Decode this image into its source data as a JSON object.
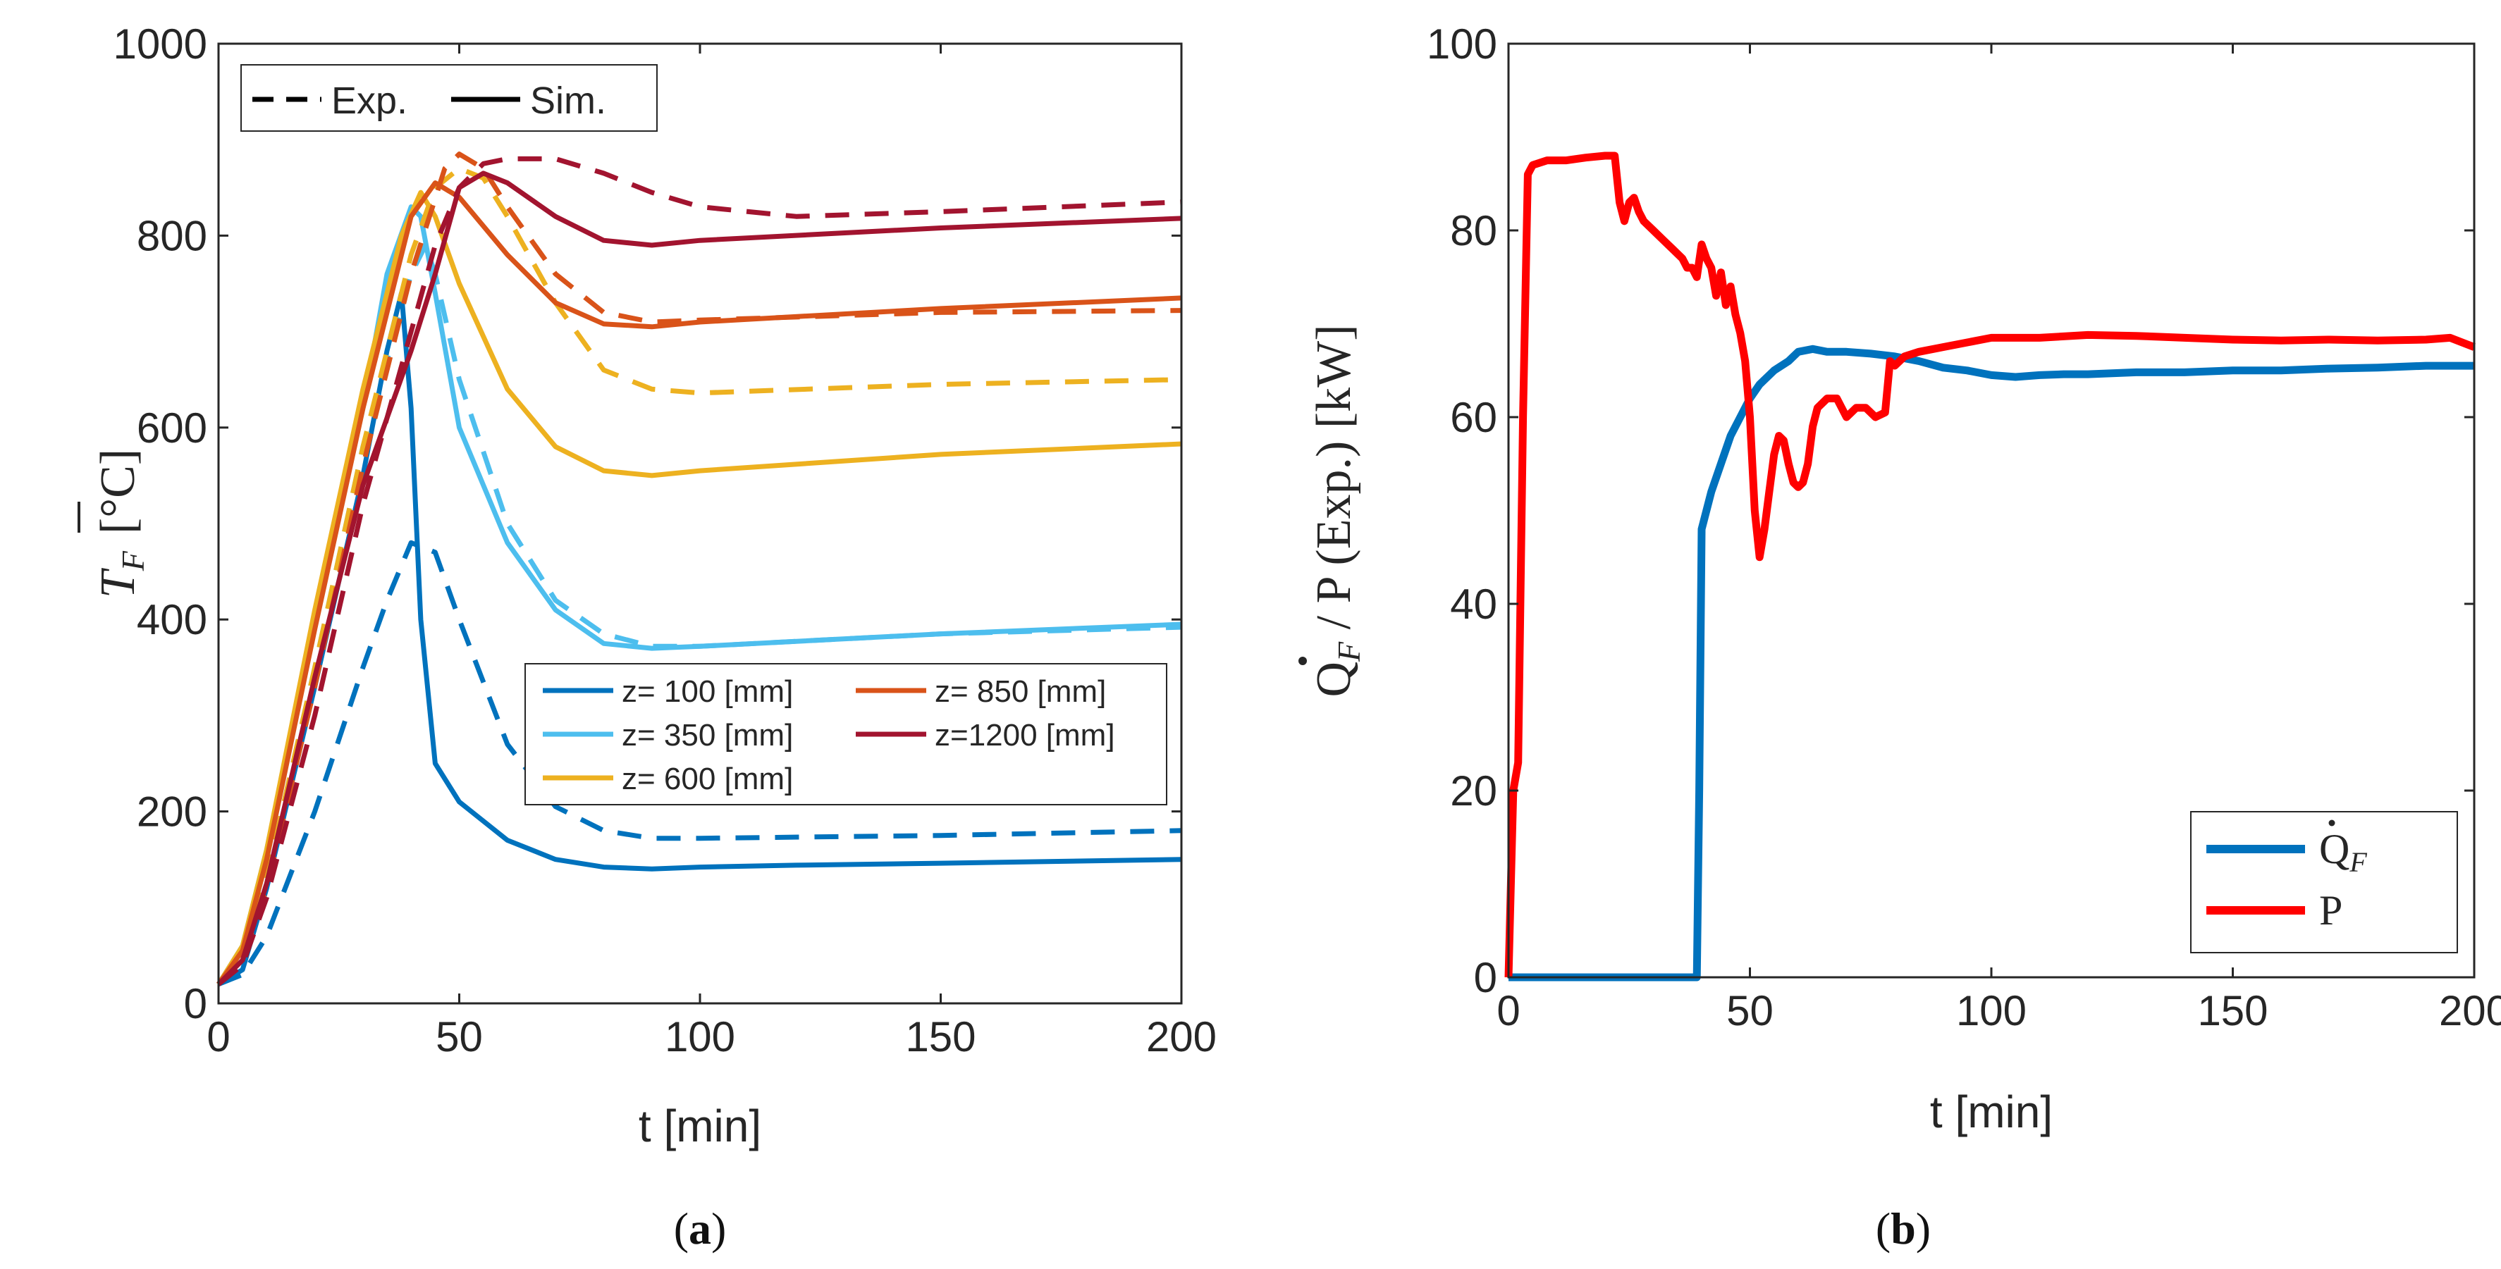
{
  "chart_data": [
    {
      "id": "a",
      "type": "line",
      "caption": {
        "open": "(",
        "letter": "a",
        "close": ")"
      },
      "ylabel": "T̄_F [°C]",
      "ylabel_parts": {
        "symbol": "T",
        "sub": "F",
        "unit": "[°C]"
      },
      "xlabel": "t [min]",
      "xlim": [
        0,
        200
      ],
      "ylim": [
        0,
        1000
      ],
      "xticks": [
        0,
        50,
        100,
        150,
        200
      ],
      "yticks": [
        0,
        200,
        400,
        600,
        800,
        1000
      ],
      "grid": false,
      "style_legend": {
        "placement": "top-left",
        "dashed_label": "Exp.",
        "solid_label": "Sim."
      },
      "series_legend_placement": "center-right",
      "series": [
        {
          "name": "z= 100 [mm]",
          "color": "#0072BD",
          "sim": {
            "x": [
              0,
              5,
              10,
              20,
              30,
              35,
              38,
              40,
              42,
              45,
              50,
              60,
              70,
              80,
              90,
              100,
              120,
              150,
              200
            ],
            "y": [
              20,
              35,
              120,
              330,
              550,
              680,
              740,
              620,
              400,
              250,
              210,
              170,
              150,
              142,
              140,
              142,
              144,
              146,
              150
            ]
          },
          "exp": {
            "x": [
              0,
              5,
              10,
              20,
              30,
              35,
              40,
              45,
              50,
              60,
              70,
              80,
              90,
              100,
              150,
              200
            ],
            "y": [
              20,
              30,
              70,
              200,
              350,
              420,
              480,
              470,
              400,
              270,
              205,
              180,
              172,
              172,
              175,
              180
            ]
          }
        },
        {
          "name": "z= 350 [mm]",
          "color": "#4DBEEE",
          "sim": {
            "x": [
              0,
              5,
              10,
              20,
              30,
              35,
              40,
              42,
              45,
              50,
              60,
              70,
              80,
              90,
              100,
              150,
              200
            ],
            "y": [
              20,
              60,
              160,
              400,
              620,
              760,
              830,
              820,
              740,
              600,
              480,
              410,
              375,
              370,
              372,
              385,
              395
            ]
          },
          "exp": {
            "x": [
              0,
              5,
              10,
              20,
              30,
              40,
              43,
              45,
              50,
              60,
              70,
              80,
              90,
              100,
              150,
              200
            ],
            "y": [
              20,
              50,
              130,
              350,
              580,
              760,
              790,
              760,
              650,
              500,
              420,
              385,
              372,
              372,
              385,
              392
            ]
          }
        },
        {
          "name": "z= 600 [mm]",
          "color": "#EDB120",
          "sim": {
            "x": [
              0,
              5,
              10,
              20,
              30,
              38,
              42,
              45,
              50,
              60,
              70,
              80,
              90,
              100,
              150,
              200
            ],
            "y": [
              20,
              60,
              160,
              410,
              640,
              800,
              845,
              820,
              750,
              640,
              580,
              555,
              550,
              555,
              572,
              583
            ]
          },
          "exp": {
            "x": [
              0,
              5,
              10,
              20,
              30,
              40,
              45,
              50,
              55,
              60,
              70,
              80,
              90,
              100,
              150,
              200
            ],
            "y": [
              20,
              50,
              130,
              350,
              580,
              780,
              850,
              870,
              860,
              820,
              730,
              660,
              640,
              636,
              645,
              650
            ]
          }
        },
        {
          "name": "z= 850 [mm]",
          "color": "#D95319",
          "sim": {
            "x": [
              0,
              5,
              10,
              20,
              30,
              40,
              45,
              50,
              60,
              70,
              80,
              90,
              100,
              150,
              200
            ],
            "y": [
              20,
              55,
              150,
              390,
              620,
              820,
              855,
              840,
              780,
              730,
              708,
              705,
              710,
              724,
              735
            ]
          },
          "exp": {
            "x": [
              0,
              5,
              10,
              20,
              30,
              40,
              47,
              50,
              55,
              60,
              70,
              80,
              90,
              100,
              150,
              200
            ],
            "y": [
              20,
              45,
              120,
              330,
              560,
              760,
              870,
              885,
              870,
              830,
              760,
              720,
              710,
              712,
              720,
              722
            ]
          }
        },
        {
          "name": "z=1200 [mm]",
          "color": "#A2142F",
          "sim": {
            "x": [
              0,
              5,
              10,
              20,
              30,
              40,
              45,
              50,
              55,
              60,
              70,
              80,
              90,
              100,
              150,
              200
            ],
            "y": [
              20,
              45,
              125,
              340,
              540,
              680,
              760,
              850,
              865,
              855,
              820,
              795,
              790,
              795,
              808,
              818
            ]
          },
          "exp": {
            "x": [
              0,
              5,
              10,
              20,
              30,
              40,
              45,
              50,
              55,
              60,
              70,
              80,
              90,
              100,
              120,
              150,
              200
            ],
            "y": [
              20,
              40,
              110,
              300,
              520,
              700,
              790,
              850,
              875,
              880,
              880,
              865,
              845,
              830,
              820,
              825,
              835
            ]
          }
        }
      ]
    },
    {
      "id": "b",
      "type": "line",
      "caption": {
        "open": "(",
        "letter": "b",
        "close": ")"
      },
      "ylabel": "Q̇_F / P (Exp.) [kW]",
      "ylabel_parts": {
        "symbol": "Q",
        "sub": "F",
        "rest": " / P (Exp.) [kW]"
      },
      "xlabel": "t [min]",
      "xlim": [
        0,
        200
      ],
      "ylim": [
        0,
        100
      ],
      "xticks": [
        0,
        50,
        100,
        150,
        200
      ],
      "yticks": [
        0,
        20,
        40,
        60,
        80,
        100
      ],
      "grid": false,
      "legend_placement": "bottom-right",
      "series": [
        {
          "name": "Q̇_F",
          "legend": {
            "symbol": "Q",
            "sub": "F"
          },
          "color": "#0072BD",
          "x": [
            0,
            39,
            39.5,
            40,
            42,
            44,
            46,
            48,
            50,
            52,
            55,
            58,
            60,
            63,
            66,
            70,
            75,
            80,
            85,
            90,
            95,
            100,
            105,
            110,
            115,
            120,
            130,
            140,
            150,
            160,
            170,
            180,
            190,
            200
          ],
          "y": [
            0,
            0,
            20,
            48,
            52,
            55,
            58,
            60,
            62,
            63.5,
            65,
            66,
            67,
            67.3,
            67,
            67,
            66.8,
            66.5,
            66,
            65.3,
            65,
            64.5,
            64.3,
            64.5,
            64.6,
            64.6,
            64.8,
            64.8,
            65,
            65,
            65.2,
            65.3,
            65.5,
            65.5
          ]
        },
        {
          "name": "P",
          "legend": {
            "symbol": "P",
            "sub": ""
          },
          "color": "#FF0000",
          "x": [
            0,
            1,
            2,
            3,
            4,
            5,
            8,
            12,
            16,
            20,
            22,
            23,
            24,
            25,
            26,
            27,
            28,
            30,
            32,
            34,
            36,
            37,
            38,
            39,
            40,
            41,
            42,
            43,
            44,
            45,
            46,
            47,
            48,
            49,
            50,
            51,
            52,
            53,
            54,
            55,
            56,
            57,
            58,
            59,
            60,
            61,
            62,
            63,
            64,
            66,
            68,
            70,
            72,
            74,
            76,
            78,
            79,
            80,
            82,
            85,
            90,
            95,
            100,
            110,
            120,
            130,
            140,
            150,
            160,
            170,
            180,
            190,
            195,
            200
          ],
          "y": [
            0,
            20,
            23,
            60,
            86,
            87,
            87.5,
            87.5,
            87.8,
            88,
            88,
            83,
            81,
            83,
            83.5,
            82,
            81,
            80,
            79,
            78,
            77,
            76,
            76,
            75,
            78.5,
            77,
            76,
            73,
            75.5,
            72,
            74,
            71,
            69,
            66,
            60,
            50,
            45,
            48,
            52,
            56,
            58,
            57.5,
            55,
            53,
            52.5,
            53,
            55,
            59,
            61,
            62,
            62,
            60,
            61,
            61,
            60,
            60.5,
            66,
            65.5,
            66.5,
            67,
            67.5,
            68,
            68.5,
            68.5,
            68.8,
            68.7,
            68.5,
            68.3,
            68.2,
            68.3,
            68.2,
            68.3,
            68.5,
            67.5
          ]
        }
      ]
    }
  ]
}
